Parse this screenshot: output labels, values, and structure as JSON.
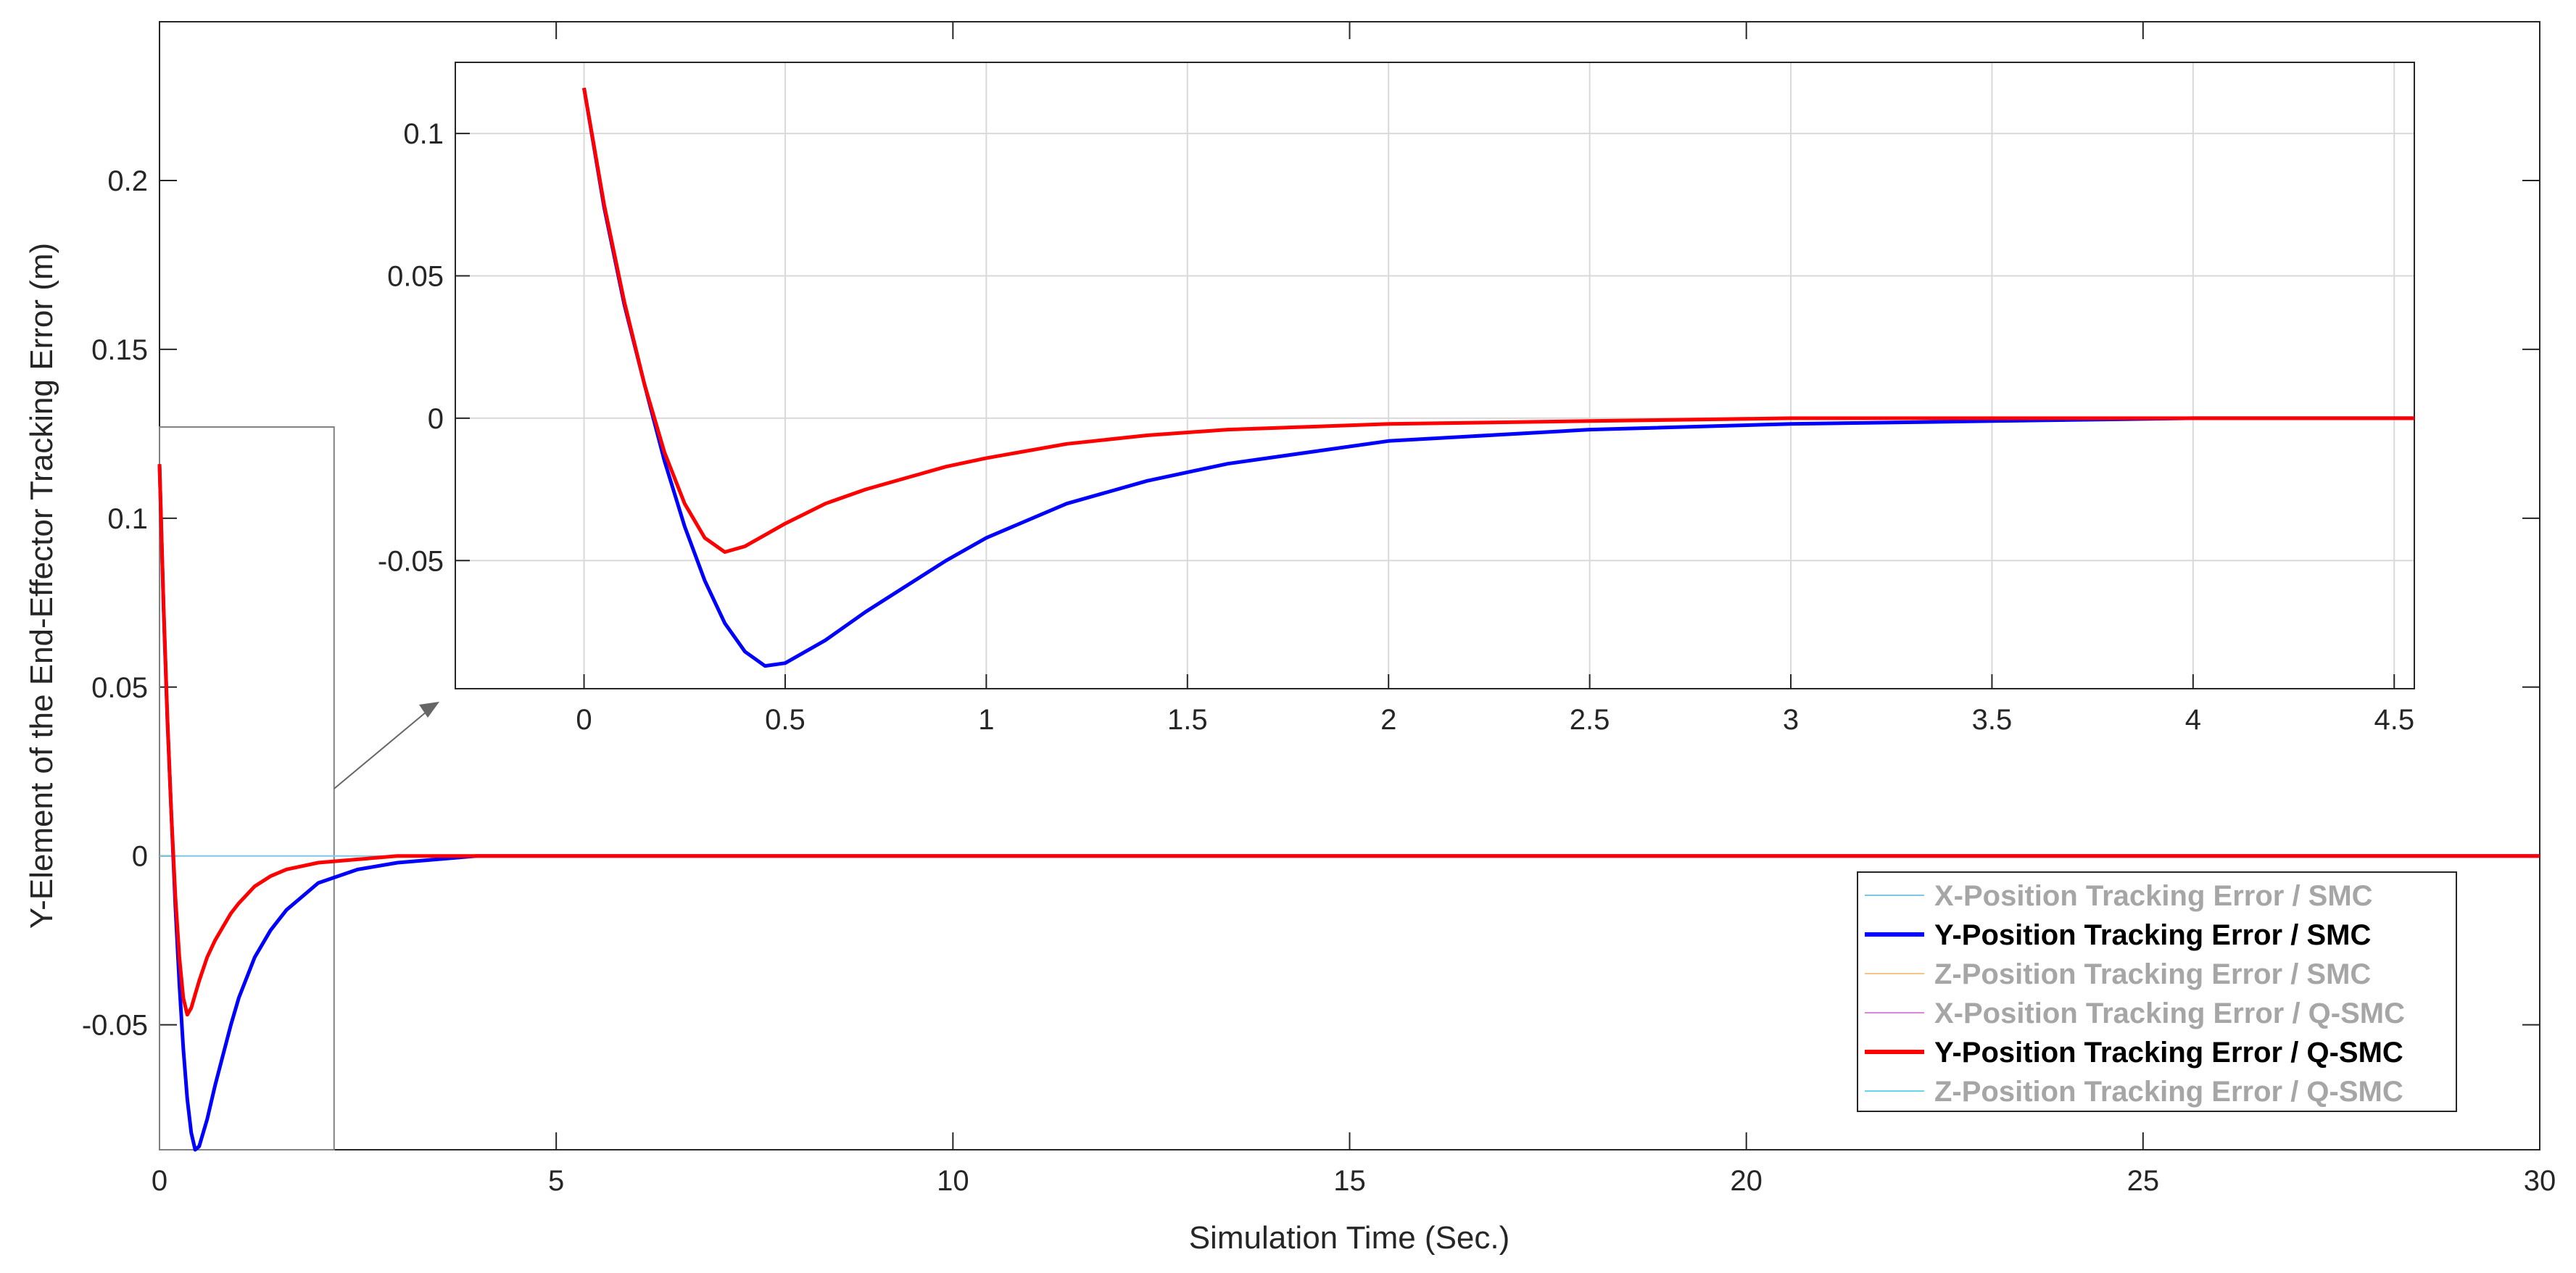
{
  "chart_data": {
    "main": {
      "type": "line",
      "xlabel": "Simulation Time (Sec.)",
      "ylabel": "Y-Element of the End-Effector Tracking Error (m)",
      "xlim": [
        0,
        30
      ],
      "ylim": [
        -0.087,
        0.247
      ],
      "xticks": [
        0,
        5,
        10,
        15,
        20,
        25,
        30
      ],
      "yticks": [
        -0.05,
        0,
        0.05,
        0.1,
        0.15,
        0.2
      ],
      "xtick_labels": [
        "0",
        "5",
        "10",
        "15",
        "20",
        "25",
        "30"
      ],
      "ytick_labels": [
        "-0.05",
        "0",
        "0.05",
        "0.1",
        "0.15",
        "0.2"
      ],
      "grid": false,
      "zoom_box": {
        "x": [
          0,
          2.2
        ],
        "y": [
          -0.093,
          0.127
        ]
      },
      "series": [
        {
          "name": "Y-Position Tracking Error  / SMC",
          "color": "#0000ff",
          "x": [
            0,
            0.05,
            0.1,
            0.15,
            0.2,
            0.25,
            0.3,
            0.35,
            0.4,
            0.45,
            0.5,
            0.6,
            0.7,
            0.8,
            0.9,
            1.0,
            1.2,
            1.4,
            1.6,
            1.8,
            2.0,
            2.5,
            3.0,
            3.5,
            4.0,
            4.5,
            6,
            10,
            15,
            20,
            25,
            30
          ],
          "y": [
            0.116,
            0.074,
            0.04,
            0.012,
            -0.015,
            -0.038,
            -0.057,
            -0.072,
            -0.082,
            -0.087,
            -0.086,
            -0.078,
            -0.068,
            -0.059,
            -0.05,
            -0.042,
            -0.03,
            -0.022,
            -0.016,
            -0.012,
            -0.008,
            -0.004,
            -0.002,
            -0.001,
            0,
            0,
            0,
            0,
            0,
            0,
            0,
            0
          ]
        },
        {
          "name": "Y-Position Tracking Error  / Q-SMC",
          "color": "#ff0000",
          "x": [
            0,
            0.05,
            0.1,
            0.15,
            0.2,
            0.25,
            0.3,
            0.35,
            0.4,
            0.45,
            0.5,
            0.6,
            0.7,
            0.8,
            0.9,
            1.0,
            1.2,
            1.4,
            1.6,
            1.8,
            2.0,
            2.5,
            3.0,
            3.5,
            4.0,
            4.5,
            6,
            10,
            15,
            20,
            25,
            30
          ],
          "y": [
            0.116,
            0.075,
            0.041,
            0.012,
            -0.012,
            -0.03,
            -0.042,
            -0.047,
            -0.045,
            -0.041,
            -0.037,
            -0.03,
            -0.025,
            -0.021,
            -0.017,
            -0.014,
            -0.009,
            -0.006,
            -0.004,
            -0.003,
            -0.002,
            -0.001,
            0,
            0,
            0,
            0,
            0,
            0,
            0,
            0,
            0,
            0
          ]
        }
      ]
    },
    "inset": {
      "type": "line",
      "xlim": [
        -0.32,
        4.55
      ],
      "ylim": [
        -0.095,
        0.125
      ],
      "xticks": [
        0,
        0.5,
        1,
        1.5,
        2,
        2.5,
        3,
        3.5,
        4,
        4.5
      ],
      "yticks": [
        -0.05,
        0,
        0.05,
        0.1
      ],
      "xtick_labels": [
        "0",
        "0.5",
        "1",
        "1.5",
        "2",
        "2.5",
        "3",
        "3.5",
        "4",
        "4.5"
      ],
      "ytick_labels": [
        "-0.05",
        "0",
        "0.05",
        "0.1"
      ],
      "grid": true
    },
    "legend": {
      "placement": "bottom-right",
      "entries": [
        {
          "label": "X-Position Tracking Error  / SMC",
          "color": "#7ec8e3",
          "active": false
        },
        {
          "label": "Y-Position Tracking Error  / SMC",
          "color": "#0000ff",
          "active": true
        },
        {
          "label": "Z-Position Tracking Error  / SMC",
          "color": "#f5c48a",
          "active": false
        },
        {
          "label": "X-Position Tracking Error  / Q-SMC",
          "color": "#d88ad8",
          "active": false
        },
        {
          "label": "Y-Position Tracking Error  / Q-SMC",
          "color": "#ff0000",
          "active": true
        },
        {
          "label": "Z-Position Tracking Error  / Q-SMC",
          "color": "#66d9e8",
          "active": false
        }
      ]
    }
  }
}
